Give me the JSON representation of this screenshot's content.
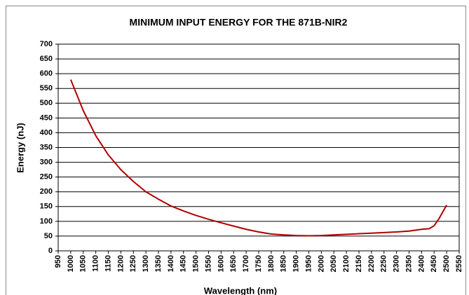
{
  "chart_data": {
    "type": "line",
    "title": "MINIMUM INPUT ENERGY FOR THE 871B-NIR2",
    "x_label": "Wavelength (nm)",
    "y_label": "Energy (nJ)",
    "x": [
      1000,
      1050,
      1100,
      1150,
      1200,
      1250,
      1300,
      1350,
      1400,
      1450,
      1500,
      1550,
      1600,
      1650,
      1700,
      1750,
      1800,
      1850,
      1900,
      1950,
      2000,
      2050,
      2100,
      2150,
      2200,
      2250,
      2300,
      2350,
      2400,
      2430,
      2450,
      2470,
      2500
    ],
    "series": [
      {
        "name": "Energy",
        "color": "#b00000",
        "values": [
          580,
          475,
          390,
          325,
          275,
          235,
          200,
          175,
          152,
          135,
          120,
          107,
          95,
          84,
          73,
          64,
          57,
          54,
          52,
          51,
          52,
          54,
          56,
          58,
          60,
          62,
          64,
          67,
          73,
          75,
          85,
          110,
          155
        ]
      }
    ],
    "xlim": [
      950,
      2550
    ],
    "xticks": [
      950,
      1000,
      1050,
      1100,
      1150,
      1200,
      1250,
      1300,
      1350,
      1400,
      1450,
      1500,
      1550,
      1600,
      1650,
      1700,
      1750,
      1800,
      1850,
      1900,
      1950,
      2000,
      2050,
      2100,
      2150,
      2200,
      2250,
      2300,
      2350,
      2400,
      2450,
      2500,
      2550
    ],
    "ylim": [
      0,
      700
    ],
    "yticks": [
      0,
      50,
      100,
      150,
      200,
      250,
      300,
      350,
      400,
      450,
      500,
      550,
      600,
      650,
      700
    ],
    "grid": true
  }
}
